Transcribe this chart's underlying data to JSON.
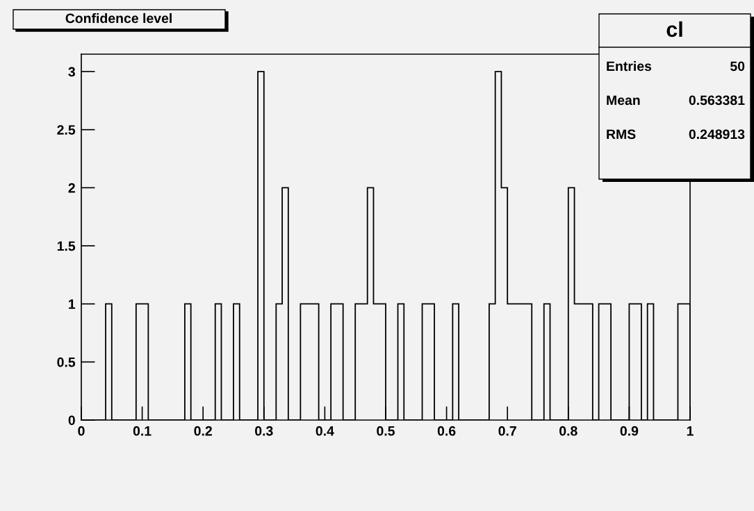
{
  "chart_data": {
    "type": "histogram",
    "title": "Confidence level",
    "bins": [
      0,
      0.01,
      0.02,
      0.03,
      0.04,
      0.05,
      0.06,
      0.07,
      0.08,
      0.09,
      0.1,
      0.11,
      0.12,
      0.13,
      0.14,
      0.15,
      0.16,
      0.17,
      0.18,
      0.19,
      0.2,
      0.21,
      0.22,
      0.23,
      0.24,
      0.25,
      0.26,
      0.27,
      0.28,
      0.29,
      0.3,
      0.31,
      0.32,
      0.33,
      0.34,
      0.35,
      0.36,
      0.37,
      0.38,
      0.39,
      0.4,
      0.41,
      0.42,
      0.43,
      0.44,
      0.45,
      0.46,
      0.47,
      0.48,
      0.49,
      0.5,
      0.51,
      0.52,
      0.53,
      0.54,
      0.55,
      0.56,
      0.57,
      0.58,
      0.59,
      0.6,
      0.61,
      0.62,
      0.63,
      0.64,
      0.65,
      0.66,
      0.67,
      0.68,
      0.69,
      0.7,
      0.71,
      0.72,
      0.73,
      0.74,
      0.75,
      0.76,
      0.77,
      0.78,
      0.79,
      0.8,
      0.81,
      0.82,
      0.83,
      0.84,
      0.85,
      0.86,
      0.87,
      0.88,
      0.89,
      0.9,
      0.91,
      0.92,
      0.93,
      0.94,
      0.95,
      0.96,
      0.97,
      0.98,
      0.99,
      1
    ],
    "values": [
      0,
      0,
      0,
      0,
      1,
      0,
      0,
      0,
      0,
      1,
      1,
      0,
      0,
      0,
      0,
      0,
      0,
      1,
      0,
      0,
      0,
      0,
      1,
      0,
      0,
      1,
      0,
      0,
      0,
      3,
      0,
      0,
      1,
      2,
      0,
      0,
      1,
      1,
      1,
      0,
      0,
      1,
      1,
      0,
      0,
      1,
      1,
      2,
      1,
      1,
      0,
      0,
      1,
      0,
      0,
      0,
      1,
      1,
      0,
      0,
      0,
      1,
      0,
      0,
      0,
      0,
      0,
      1,
      3,
      2,
      1,
      1,
      1,
      1,
      0,
      0,
      1,
      0,
      0,
      0,
      2,
      1,
      1,
      1,
      0,
      1,
      1,
      0,
      0,
      0,
      1,
      1,
      0,
      1,
      0,
      0,
      0,
      0,
      1,
      1
    ],
    "color": "#000000",
    "xlim": [
      0,
      1
    ],
    "xticks": [
      0,
      0.1,
      0.2,
      0.3,
      0.4,
      0.5,
      0.6,
      0.7,
      0.8,
      0.9,
      1
    ],
    "ylim": [
      0,
      3.15
    ],
    "yticks": [
      0,
      0.5,
      1,
      1.5,
      2,
      2.5,
      3
    ],
    "grid": false,
    "annotations": [
      "cl",
      "Entries",
      "50",
      "Mean",
      "0.563381",
      "RMS",
      "0.248913"
    ]
  }
}
